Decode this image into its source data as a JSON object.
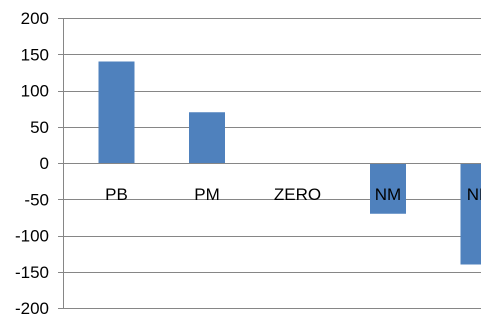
{
  "chart_data": {
    "type": "bar",
    "categories": [
      "PB",
      "PM",
      "ZERO",
      "NM",
      "NB"
    ],
    "values": [
      140,
      70,
      0,
      -70,
      -140
    ],
    "ylim": [
      -200,
      200
    ],
    "yticks": [
      200,
      150,
      100,
      50,
      0,
      -50,
      -100,
      -150,
      -200
    ],
    "grid": true,
    "colors": {
      "bar": "#4f81bd",
      "grid": "#868686",
      "axis": "#868686"
    }
  }
}
